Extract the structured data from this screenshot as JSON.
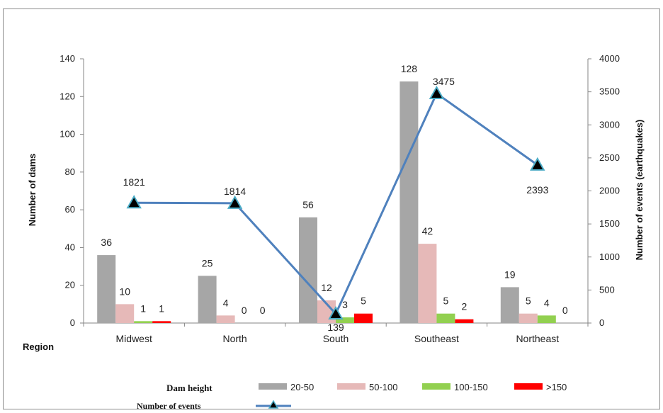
{
  "chart_data": {
    "type": "bar",
    "categories": [
      "Midwest",
      "North",
      "South",
      "Southeast",
      "Northeast"
    ],
    "series": [
      {
        "name": "20-50",
        "values": [
          36,
          25,
          56,
          128,
          19
        ],
        "color": "#a6a6a6"
      },
      {
        "name": "50-100",
        "values": [
          10,
          4,
          12,
          42,
          5
        ],
        "color": "#e6b9b8"
      },
      {
        "name": "100-150",
        "values": [
          1,
          0,
          3,
          5,
          4
        ],
        "color": "#92d050"
      },
      {
        "name": ">150",
        "values": [
          1,
          0,
          5,
          2,
          0
        ],
        "color": "#ff0000"
      }
    ],
    "line_series": {
      "name": "Number of events",
      "values": [
        1821,
        1814,
        139,
        3475,
        2393
      ],
      "color": "#4f81bd",
      "marker": "triangle"
    },
    "ylabel": "Number of dams",
    "y2label": "Number of events (earthquakes)",
    "xlabel": "Region",
    "ylim": [
      0,
      140
    ],
    "y2lim": [
      0,
      4000
    ],
    "yticks": [
      0,
      20,
      40,
      60,
      80,
      100,
      120,
      140
    ],
    "y2ticks": [
      0,
      500,
      1000,
      1500,
      2000,
      2500,
      3000,
      3500,
      4000
    ],
    "legend_title": "Dam height",
    "legend_line_title": "Number of events",
    "legend_position": "bottom",
    "grid": false
  }
}
